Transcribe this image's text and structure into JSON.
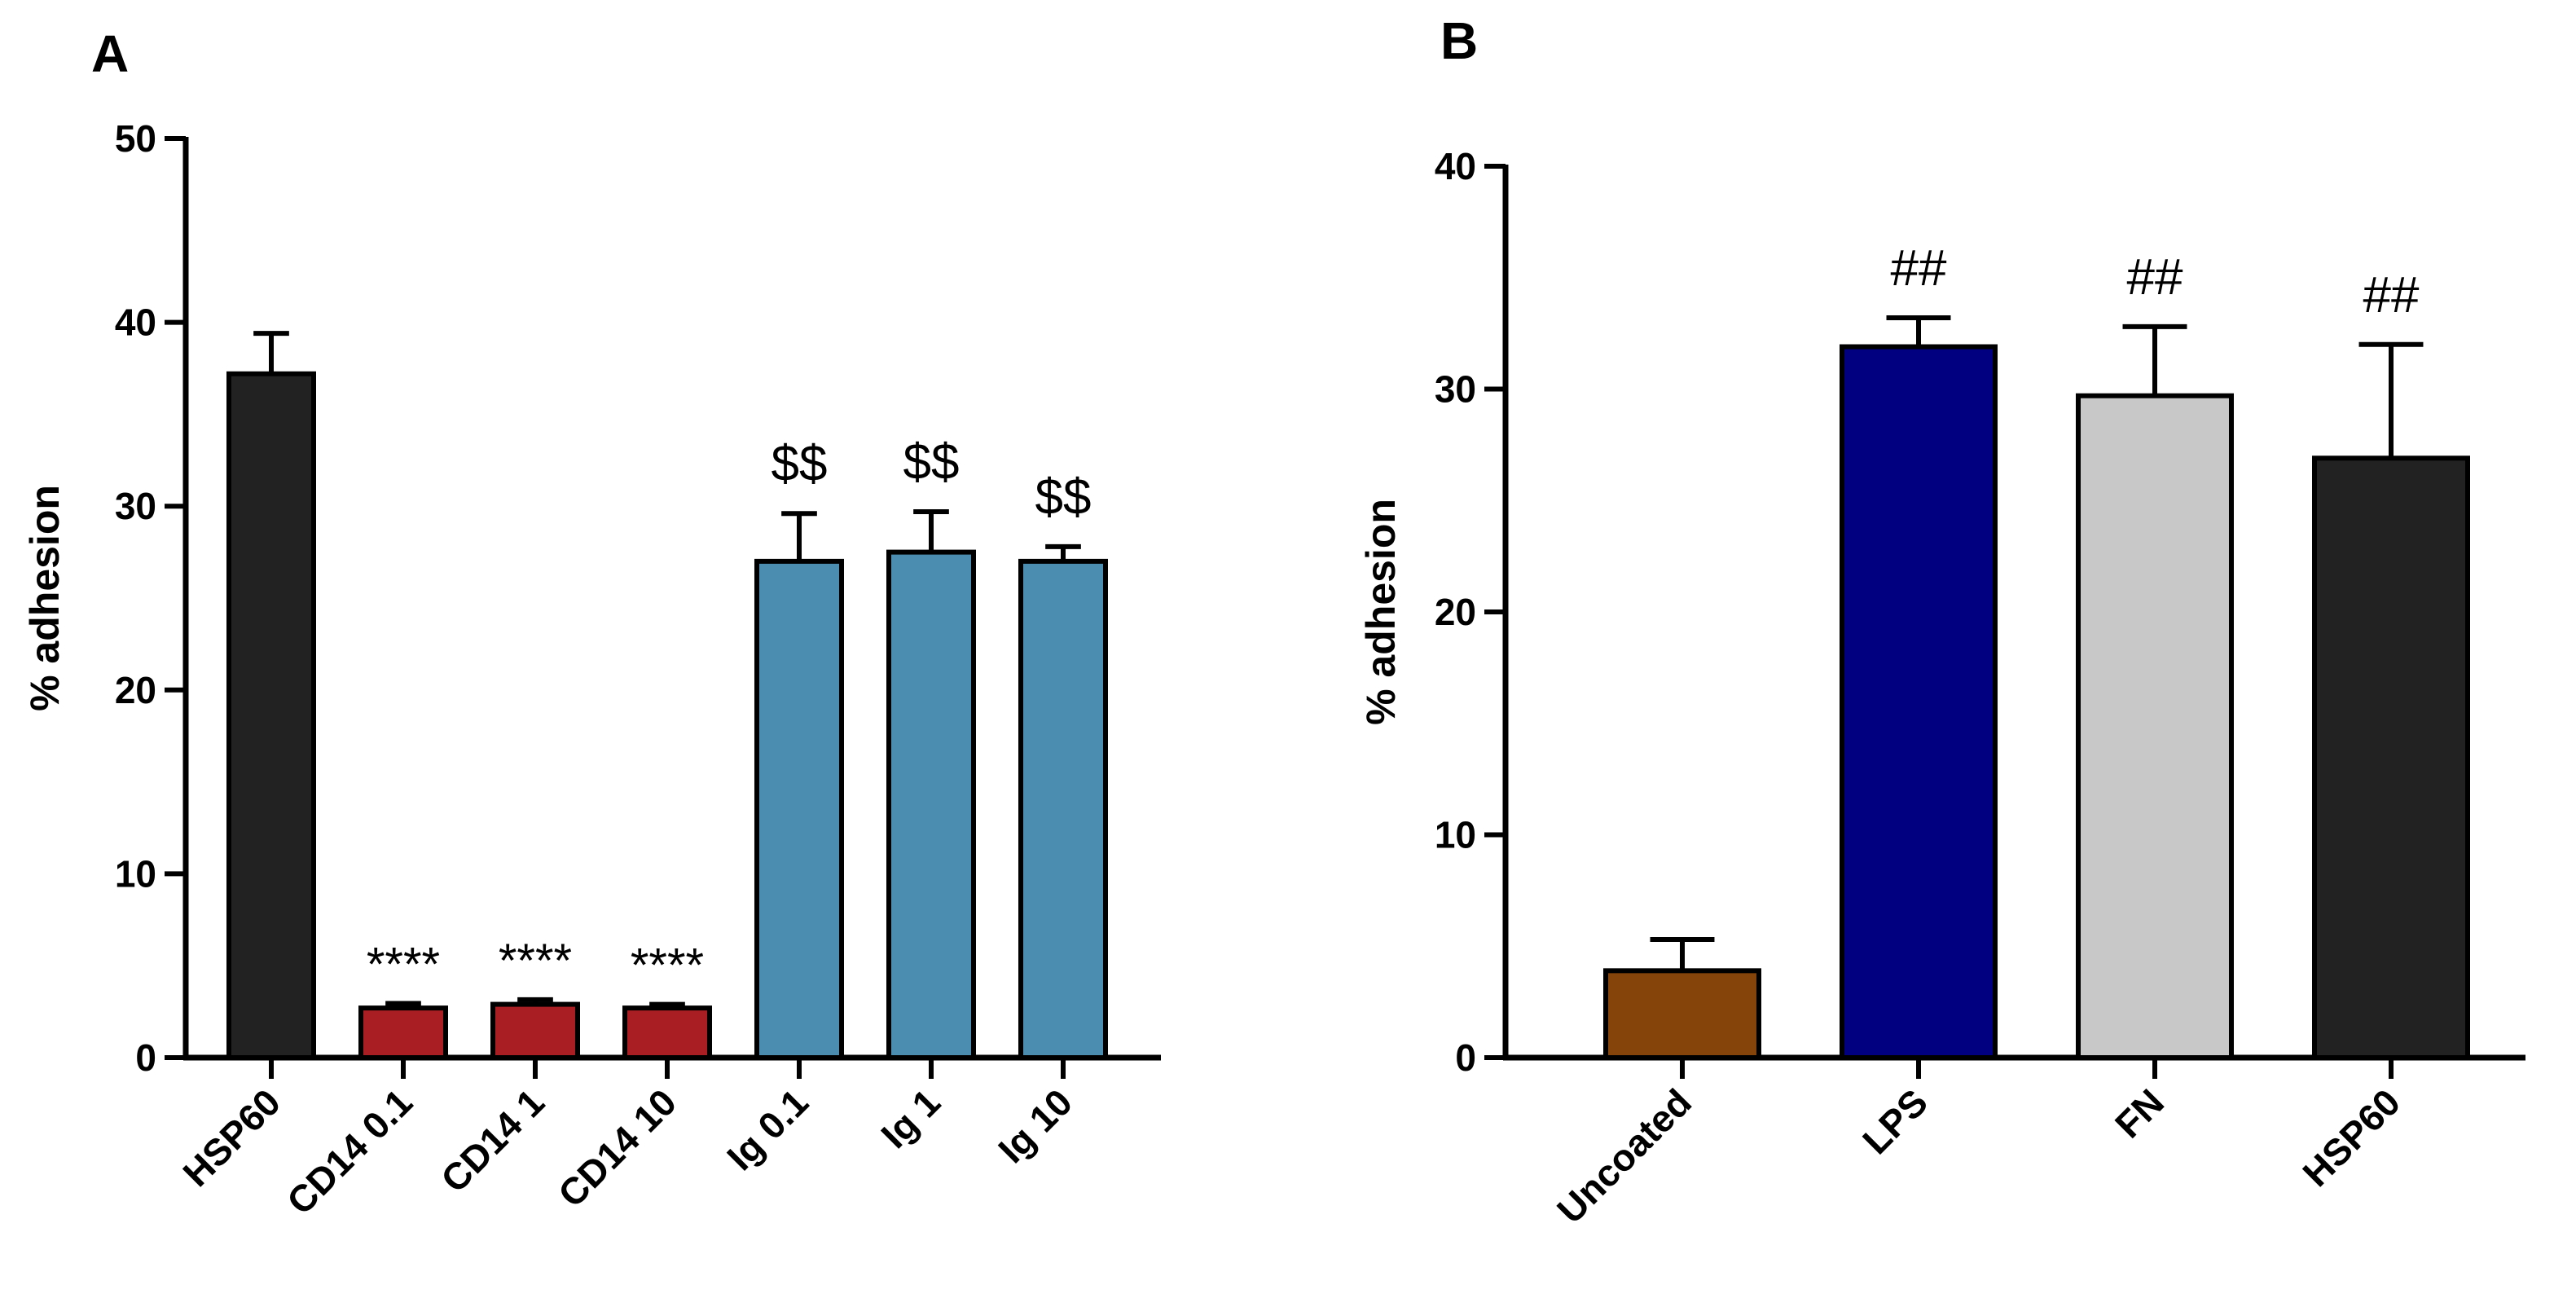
{
  "chart_data": [
    {
      "panel": "A",
      "type": "bar",
      "title": "",
      "xlabel": "",
      "ylabel": "% adhesion",
      "ylim": [
        0,
        50
      ],
      "yticks": [
        0,
        10,
        20,
        30,
        40,
        50
      ],
      "grid": false,
      "categories": [
        "HSP60",
        "CD14 0.1",
        "CD14 1",
        "CD14 10",
        "Ig 0.1",
        "Ig 1",
        "Ig 10"
      ],
      "values": [
        37.2,
        2.7,
        2.9,
        2.7,
        27.0,
        27.5,
        27.0
      ],
      "errors": [
        2.2,
        0.25,
        0.25,
        0.2,
        2.6,
        2.2,
        0.8
      ],
      "colors": [
        "#222222",
        "#a91e22",
        "#a91e22",
        "#a91e22",
        "#4a8db0",
        "#4a8db0",
        "#4a8db0"
      ],
      "annotations": [
        "",
        "****",
        "****",
        "****",
        "$$",
        "$$",
        "$$"
      ]
    },
    {
      "panel": "B",
      "type": "bar",
      "title": "",
      "xlabel": "",
      "ylabel": "% adhesion",
      "ylim": [
        0,
        40
      ],
      "yticks": [
        0,
        10,
        20,
        30,
        40
      ],
      "grid": false,
      "categories": [
        "Uncoated",
        "LPS",
        "FN",
        "HSP60"
      ],
      "values": [
        3.9,
        31.9,
        29.7,
        26.9
      ],
      "errors": [
        1.4,
        1.3,
        3.1,
        5.1
      ],
      "colors": [
        "#854409",
        "#000080",
        "#c8c8c8",
        "#222222"
      ],
      "annotations": [
        "",
        "##",
        "##",
        "##"
      ]
    }
  ]
}
